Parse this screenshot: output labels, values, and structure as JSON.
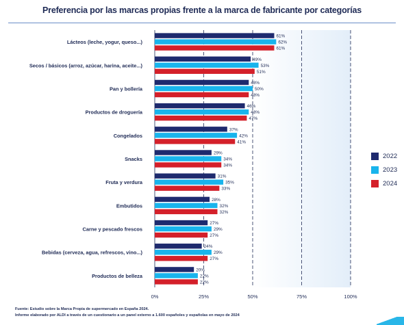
{
  "chart_data": {
    "type": "bar",
    "orientation": "horizontal",
    "title": "Preferencia por las marcas propias frente a la marca de fabricante por categorías",
    "categories": [
      "Lácteos (leche, yogur, queso...)",
      "Secos / básicos (arroz, azúcar, harina, aceite...)",
      "Pan y bollería",
      "Productos de droguería",
      "Congelados",
      "Snacks",
      "Fruta y verdura",
      "Embutidos",
      "Carne y pescado frescos",
      "Bebidas (cerveza, agua, refrescos, vino...)",
      "Productos de belleza"
    ],
    "series": [
      {
        "name": "2022",
        "color": "#1e2a6e",
        "values": [
          61,
          49,
          48,
          46,
          37,
          29,
          31,
          28,
          27,
          24,
          20
        ]
      },
      {
        "name": "2023",
        "color": "#19b4ec",
        "values": [
          62,
          53,
          50,
          48,
          42,
          34,
          35,
          32,
          29,
          29,
          22
        ]
      },
      {
        "name": "2024",
        "color": "#d4202a",
        "values": [
          61,
          51,
          48,
          47,
          41,
          34,
          33,
          32,
          27,
          27,
          22
        ]
      }
    ],
    "xlim": [
      0,
      100
    ],
    "xticks": [
      "0%",
      "25%",
      "50%",
      "75%",
      "100%"
    ],
    "value_suffix": "%",
    "legend_position": "right",
    "grid": true
  },
  "footnotes": [
    "Fuente: Estudio sobre la Marca Propia de supermercado en España 2024.",
    "Informe elaborado por ALDI a través de un cuestionario a un panel externo a 1.600 españoles y españolas en mayo de 2024"
  ]
}
